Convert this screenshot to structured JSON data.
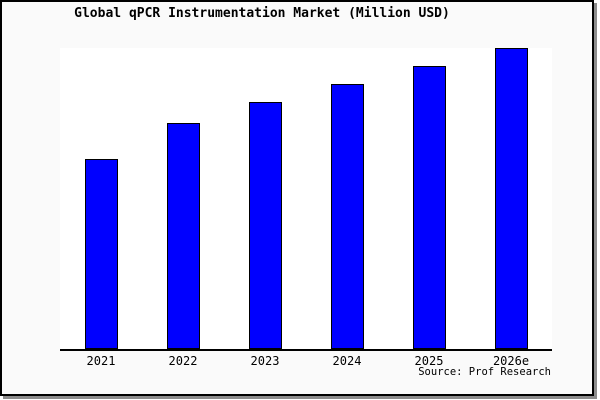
{
  "title": "Global qPCR Instrumentation Market (Million USD)",
  "source_credit": "Source: Prof Research",
  "colors": {
    "bar_fill": "#0000ff",
    "bar_border": "#000000",
    "frame_background": "#fafafa",
    "plot_background": "#ffffff",
    "axis": "#000000",
    "frame_border": "#000000",
    "frame_shadow": "#8c8c8c"
  },
  "chart_data": {
    "type": "bar",
    "title": "Global qPCR Instrumentation Market (Million USD)",
    "categories": [
      "2021",
      "2022",
      "2023",
      "2024",
      "2025",
      "2026e"
    ],
    "values": [
      63,
      75,
      82,
      88,
      94,
      100
    ],
    "values_note": "y-axis has no tick labels; values are relative bar heights with tallest bar (2026e) = 100",
    "xlabel": "",
    "ylabel": "",
    "ylim": [
      0,
      100
    ],
    "grid": false,
    "legend": "none",
    "source": "Source: Prof Research"
  }
}
